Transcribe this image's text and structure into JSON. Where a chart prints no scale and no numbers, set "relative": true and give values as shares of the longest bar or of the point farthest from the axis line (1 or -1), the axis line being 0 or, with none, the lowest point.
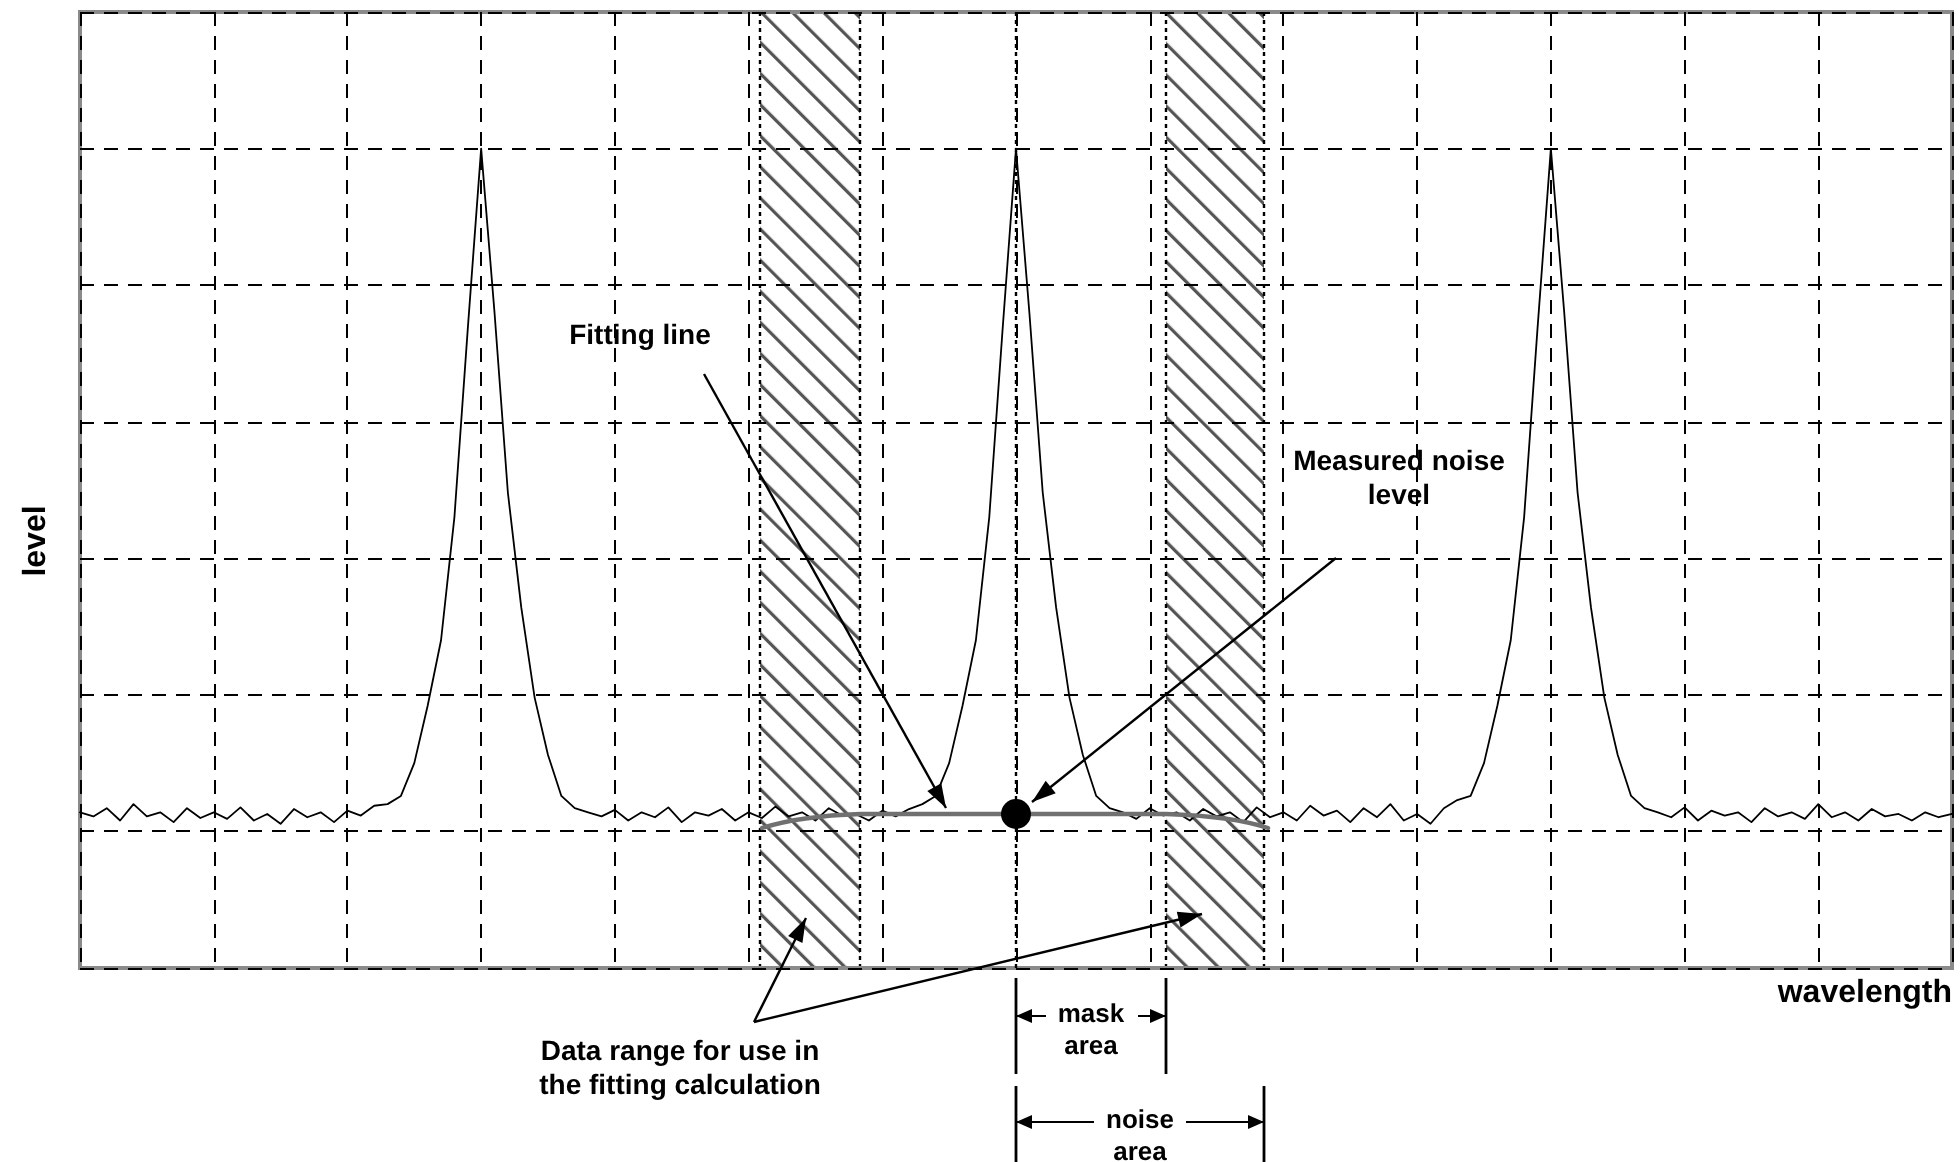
{
  "chart_data": {
    "type": "line",
    "relative": true,
    "grid": true,
    "line_style": "solid",
    "xlabel": "wavelength",
    "ylabel": "level",
    "annotations": [
      "Fitting line",
      "Measured noise level",
      "Data range for use in the fitting calculation",
      "mask area",
      "noise area"
    ],
    "categories": [
      null,
      null,
      null,
      null,
      null,
      null,
      null,
      null,
      null,
      null,
      null,
      null,
      null,
      null,
      null,
      null,
      null,
      null,
      null,
      null,
      null,
      null,
      null,
      null,
      null,
      null,
      null,
      null,
      null,
      null,
      null,
      null,
      null,
      null,
      null,
      null,
      null,
      null,
      null,
      null,
      null,
      null,
      null,
      null,
      null,
      null,
      null,
      null,
      null,
      null,
      null,
      null,
      null,
      null,
      null,
      null,
      null,
      null,
      null,
      null,
      null,
      null,
      null,
      null,
      null,
      null,
      null,
      null,
      null,
      null,
      null,
      null,
      null,
      null,
      null,
      null,
      null,
      null,
      null,
      null,
      null,
      null,
      null,
      null,
      null,
      null,
      null,
      null,
      null,
      null,
      null,
      null,
      null,
      null,
      null,
      null,
      null,
      null,
      null,
      null,
      null,
      null,
      null,
      null,
      null,
      null,
      null,
      null,
      null,
      null,
      null,
      null,
      null,
      null,
      null,
      null,
      null,
      null,
      null,
      null,
      null,
      null,
      null,
      null,
      null,
      null,
      null,
      null,
      null,
      null,
      null,
      null,
      null,
      null,
      null,
      null,
      null,
      null,
      null,
      null,
      null
    ],
    "series": [
      {
        "color": "#000000",
        "values": [
          0.19,
          0.185,
          0.195,
          0.18,
          0.2,
          0.185,
          0.19,
          0.178,
          0.195,
          0.183,
          0.19,
          0.182,
          0.196,
          0.18,
          0.188,
          0.176,
          0.194,
          0.184,
          0.19,
          0.178,
          0.192,
          0.186,
          0.198,
          0.2,
          0.21,
          0.25,
          0.32,
          0.4,
          0.55,
          0.78,
          1,
          0.8,
          0.58,
          0.44,
          0.33,
          0.26,
          0.21,
          0.195,
          0.19,
          0.185,
          0.193,
          0.18,
          0.19,
          0.184,
          0.196,
          0.178,
          0.19,
          0.186,
          0.194,
          0.18,
          0.19,
          0.183,
          0.197,
          0.185,
          0.19,
          0.18,
          0.195,
          0.186,
          0.188,
          0.18,
          0.192,
          0.185,
          0.194,
          0.2,
          0.21,
          0.25,
          0.32,
          0.4,
          0.55,
          0.78,
          1,
          0.8,
          0.58,
          0.44,
          0.33,
          0.26,
          0.21,
          0.195,
          0.19,
          0.182,
          0.195,
          0.186,
          0.19,
          0.18,
          0.194,
          0.185,
          0.19,
          0.178,
          0.196,
          0.184,
          0.19,
          0.18,
          0.198,
          0.186,
          0.192,
          0.178,
          0.195,
          0.184,
          0.2,
          0.18,
          0.188,
          0.176,
          0.195,
          0.205,
          0.21,
          0.25,
          0.32,
          0.4,
          0.55,
          0.78,
          1,
          0.8,
          0.58,
          0.44,
          0.33,
          0.26,
          0.21,
          0.195,
          0.19,
          0.184,
          0.196,
          0.18,
          0.192,
          0.186,
          0.19,
          0.178,
          0.195,
          0.185,
          0.19,
          0.182,
          0.2,
          0.184,
          0.19,
          0.18,
          0.194,
          0.185,
          0.188,
          0.18,
          0.19,
          0.184,
          0.188
        ]
      }
    ]
  }
}
